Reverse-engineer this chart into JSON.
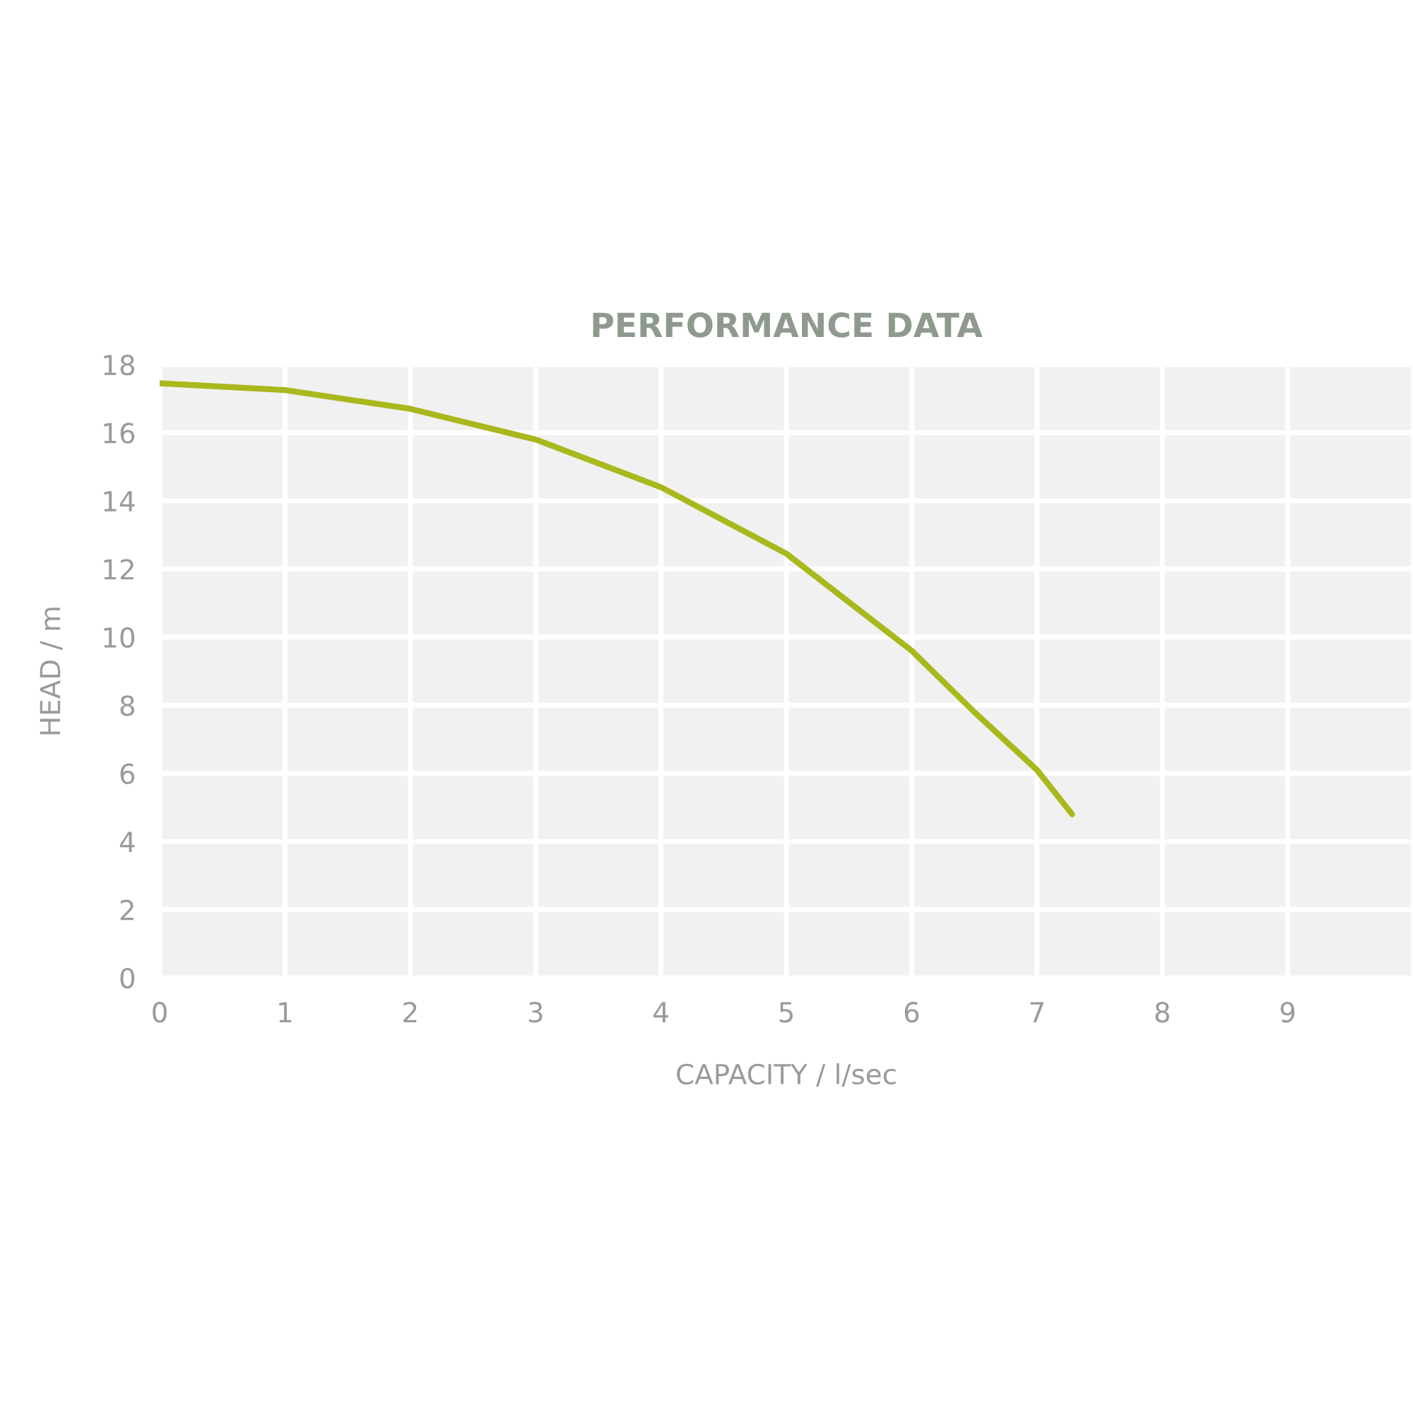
{
  "chart_data": {
    "type": "line",
    "title": "PERFORMANCE DATA",
    "xlabel": "CAPACITY / l/sec",
    "ylabel": "HEAD / m",
    "x": [
      0,
      1,
      2,
      3,
      4,
      5,
      6,
      6.5,
      7,
      7.28
    ],
    "series": [
      {
        "color": "#a9b81c",
        "values": [
          17.45,
          17.25,
          16.7,
          15.8,
          14.4,
          12.45,
          9.6,
          7.8,
          6.1,
          4.8
        ]
      }
    ],
    "xlim": [
      0,
      10
    ],
    "xticks": [
      0,
      1,
      2,
      3,
      4,
      5,
      6,
      7,
      8,
      9
    ],
    "ylim": [
      0,
      18
    ],
    "yticks": [
      0,
      2,
      4,
      6,
      8,
      10,
      12,
      14,
      16,
      18
    ],
    "grid": true,
    "legend": false,
    "marker": "none",
    "line_style": "solid"
  }
}
